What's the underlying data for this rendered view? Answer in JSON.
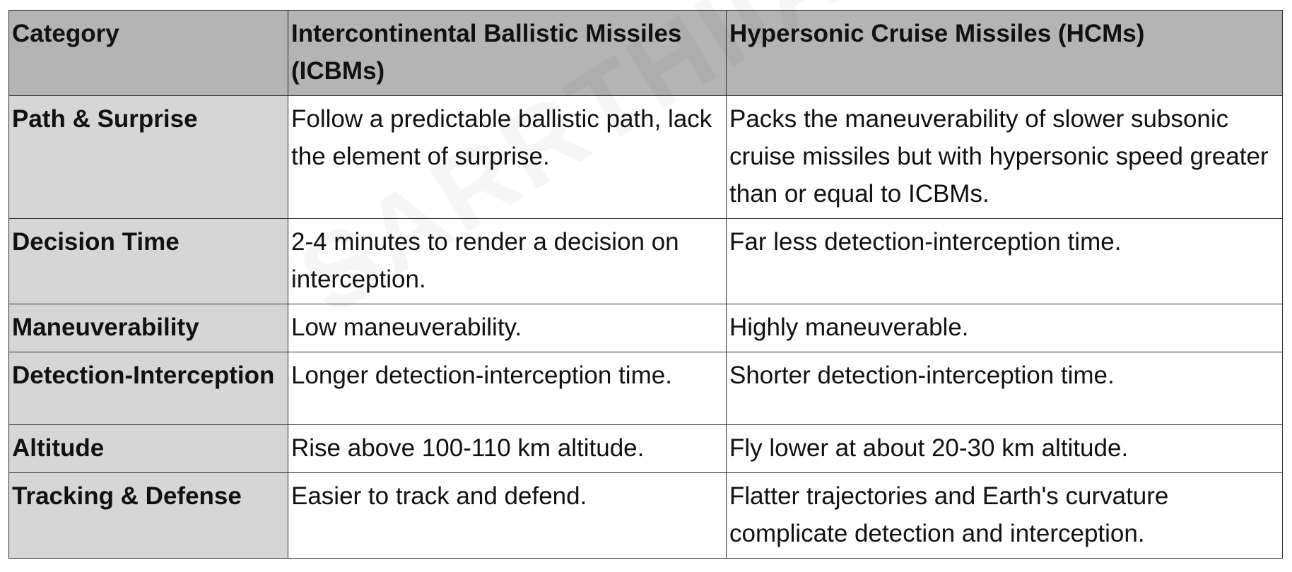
{
  "table": {
    "headers": [
      "Category",
      "Intercontinental Ballistic Missiles (ICBMs)",
      "Hypersonic Cruise Missiles (HCMs)"
    ],
    "rows": [
      {
        "category": "Path & Surprise",
        "icbm": "Follow a predictable ballistic path, lack the element of surprise.",
        "hcm": "Packs the maneuverability of slower subsonic cruise missiles but with hypersonic speed greater than or equal to ICBMs."
      },
      {
        "category": "Decision Time",
        "icbm": "2-4 minutes to render a decision on interception.",
        "hcm": "Far less detection-interception time."
      },
      {
        "category": "Maneuverability",
        "icbm": "Low maneuverability.",
        "hcm": "Highly maneuverable."
      },
      {
        "category": "Detection-Interception",
        "icbm": "Longer detection-interception time.",
        "hcm": "Shorter detection-interception time."
      },
      {
        "category": "Altitude",
        "icbm": "Rise above 100-110 km altitude.",
        "hcm": "Fly lower at about 20-30 km altitude."
      },
      {
        "category": "Tracking & Defense",
        "icbm": "Easier to track and defend.",
        "hcm": "Flatter trajectories and Earth's curvature complicate detection and interception."
      }
    ]
  },
  "watermark": {
    "text": "SARRTHIIAS"
  },
  "colors": {
    "header_bg": "#b3b4b3",
    "category_bg": "#d6d6d6",
    "border": "#2b2b2b",
    "cell_bg": "#ffffff"
  }
}
